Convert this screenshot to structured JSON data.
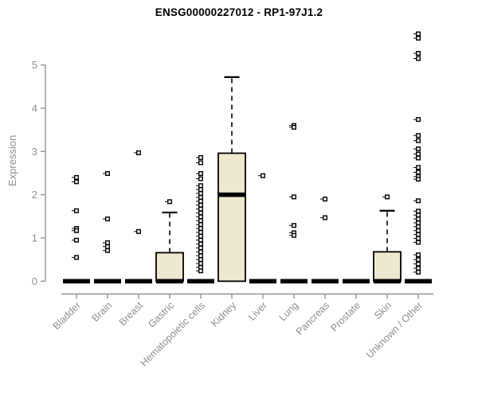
{
  "header": {
    "title": "ENSG00000227012 - RP1-97J1.2"
  },
  "colors": {
    "box_fill": "#EDE8CE",
    "box_stroke": "#000000",
    "median": "#000000",
    "axis": "#8c8c8c",
    "tick_label": "#8f8f8f",
    "title_text": "#000000",
    "background": "#ffffff"
  },
  "chart_data": {
    "type": "boxplot",
    "title": "ENSG00000227012 - RP1-97J1.2",
    "xlabel": "",
    "ylabel": "Expression",
    "ylim": [
      0,
      5.9
    ],
    "yticks": [
      0,
      1,
      2,
      3,
      4,
      5
    ],
    "grid": false,
    "legend": "none",
    "categories": [
      "Bladder",
      "Brain",
      "Breast",
      "Gastric",
      "Hematopoietic cells",
      "Kidney",
      "Liver",
      "Lung",
      "Pancreas",
      "Prostate",
      "Skin",
      "Unknown / Other"
    ],
    "series": [
      {
        "name": "Bladder",
        "whisker_low": 0,
        "q1": 0,
        "median": 0,
        "q3": 0,
        "whisker_high": 0,
        "outliers": [
          2.4,
          2.3,
          1.63,
          1.22,
          1.17,
          0.95,
          0.55
        ]
      },
      {
        "name": "Brain",
        "whisker_low": 0,
        "q1": 0,
        "median": 0,
        "q3": 0,
        "whisker_high": 0,
        "outliers": [
          2.49,
          1.44,
          0.89,
          0.8,
          0.71
        ]
      },
      {
        "name": "Breast",
        "whisker_low": 0,
        "q1": 0,
        "median": 0,
        "q3": 0,
        "whisker_high": 0,
        "outliers": [
          2.97,
          1.15
        ]
      },
      {
        "name": "Gastric",
        "whisker_low": 0,
        "q1": 0,
        "median": 0,
        "q3": 0.66,
        "whisker_high": 1.59,
        "outliers": [
          1.84
        ]
      },
      {
        "name": "Hematopoietic cells",
        "whisker_low": 0,
        "q1": 0,
        "median": 0,
        "q3": 0,
        "whisker_high": 0,
        "outliers": [
          2.86,
          2.74,
          2.49,
          2.37,
          2.21,
          2.12,
          2.03,
          1.94,
          1.85,
          1.76,
          1.67,
          1.58,
          1.49,
          1.4,
          1.31,
          1.22,
          1.13,
          1.04,
          0.95,
          0.86,
          0.77,
          0.68,
          0.59,
          0.5,
          0.41,
          0.32,
          0.24
        ]
      },
      {
        "name": "Kidney",
        "whisker_low": 0,
        "q1": 0,
        "median": 2.0,
        "q3": 2.96,
        "whisker_high": 4.72,
        "outliers": []
      },
      {
        "name": "Liver",
        "whisker_low": 0,
        "q1": 0,
        "median": 0,
        "q3": 0,
        "whisker_high": 0,
        "outliers": [
          2.44
        ]
      },
      {
        "name": "Lung",
        "whisker_low": 0,
        "q1": 0,
        "median": 0,
        "q3": 0,
        "whisker_high": 0,
        "outliers": [
          3.6,
          3.56,
          1.95,
          1.29,
          1.12,
          1.06
        ]
      },
      {
        "name": "Pancreas",
        "whisker_low": 0,
        "q1": 0,
        "median": 0,
        "q3": 0,
        "whisker_high": 0,
        "outliers": [
          1.9,
          1.47
        ]
      },
      {
        "name": "Prostate",
        "whisker_low": 0,
        "q1": 0,
        "median": 0,
        "q3": 0,
        "whisker_high": 0,
        "outliers": []
      },
      {
        "name": "Skin",
        "whisker_low": 0,
        "q1": 0,
        "median": 0,
        "q3": 0.68,
        "whisker_high": 1.63,
        "outliers": [
          1.95
        ]
      },
      {
        "name": "Unknown / Other",
        "whisker_low": 0,
        "q1": 0,
        "median": 0,
        "q3": 0,
        "whisker_high": 0,
        "outliers": [
          5.72,
          5.62,
          5.27,
          5.15,
          3.74,
          3.37,
          3.25,
          3.06,
          2.94,
          2.85,
          2.63,
          2.52,
          2.42,
          2.36,
          1.86,
          1.62,
          1.53,
          1.44,
          1.35,
          1.26,
          1.17,
          1.08,
          0.99,
          0.9,
          0.61,
          0.5,
          0.4,
          0.3,
          0.21
        ]
      }
    ]
  }
}
